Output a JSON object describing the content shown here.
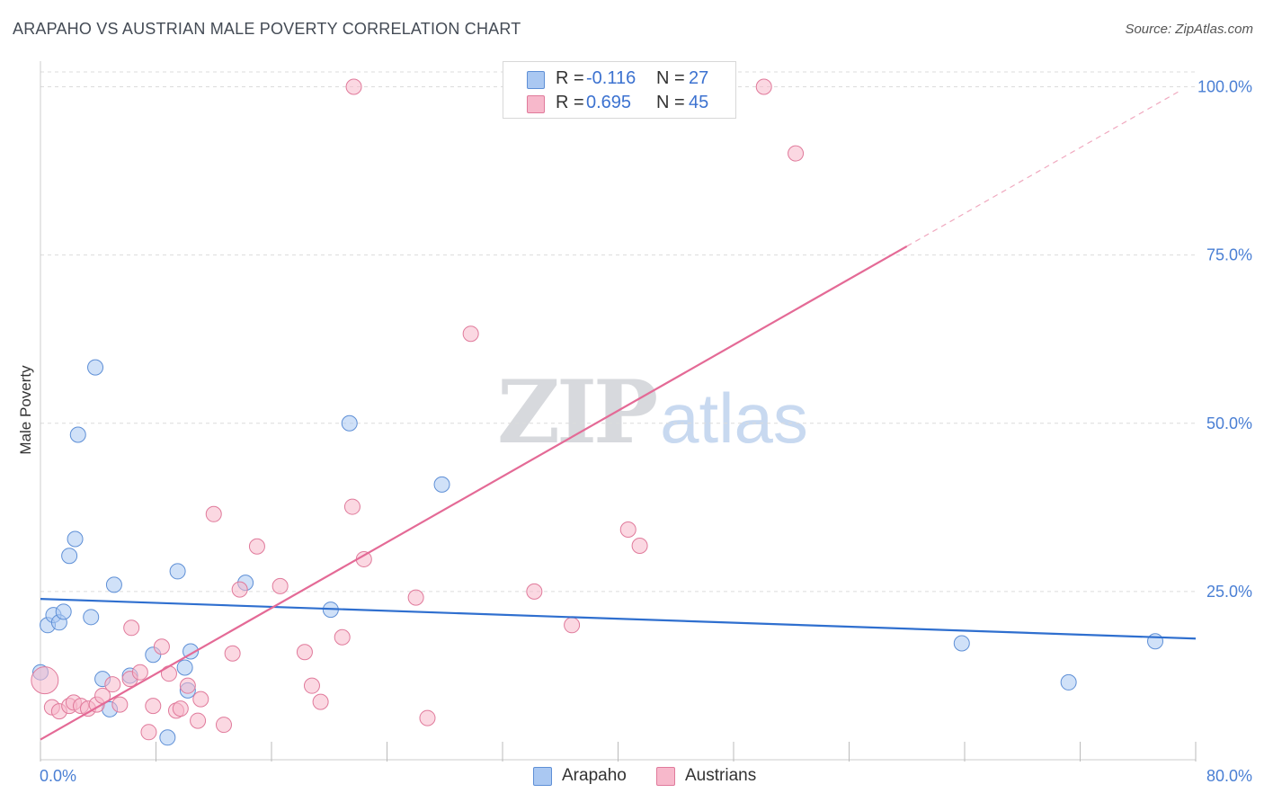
{
  "title": "ARAPAHO VS AUSTRIAN MALE POVERTY CORRELATION CHART",
  "source": "Source: ZipAtlas.com",
  "watermark": {
    "zip": "ZIP",
    "atlas": "atlas"
  },
  "legend": {
    "rows": [
      {
        "r_label": "R =",
        "r_value": "-0.116",
        "n_label": "N =",
        "n_value": "27",
        "color": "#aac8f2",
        "border": "#5e8fd6"
      },
      {
        "r_label": "R =",
        "r_value": "0.695",
        "n_label": "N =",
        "n_value": "45",
        "color": "#f7b8cb",
        "border": "#e07a9b"
      }
    ]
  },
  "bottom_legend": [
    {
      "label": "Arapaho",
      "color": "#aac8f2",
      "border": "#5e8fd6"
    },
    {
      "label": "Austrians",
      "color": "#f7b8cb",
      "border": "#e07a9b"
    }
  ],
  "chart_data": {
    "type": "scatter",
    "title": "ARAPAHO VS AUSTRIAN MALE POVERTY CORRELATION CHART",
    "xlabel": "",
    "ylabel": "Male Poverty",
    "xlim": [
      0,
      80
    ],
    "ylim": [
      0,
      102
    ],
    "x_tick_labels": [
      "0.0%",
      "80.0%"
    ],
    "y_ticks": [
      25,
      50,
      75,
      100
    ],
    "y_tick_labels": [
      "25.0%",
      "50.0%",
      "75.0%",
      "100.0%"
    ],
    "grid": true,
    "legend_position": "top-center",
    "series": [
      {
        "name": "Arapaho",
        "color": "#aac8f2",
        "stroke": "#5e8fd6",
        "line_color": "#2f6fcf",
        "points": [
          [
            0.0,
            13.0
          ],
          [
            0.5,
            20.0
          ],
          [
            0.9,
            21.5
          ],
          [
            1.3,
            20.4
          ],
          [
            1.6,
            22.0
          ],
          [
            2.0,
            30.3
          ],
          [
            2.4,
            32.8
          ],
          [
            2.6,
            48.3
          ],
          [
            3.5,
            21.2
          ],
          [
            3.8,
            58.3
          ],
          [
            4.3,
            12.0
          ],
          [
            4.8,
            7.5
          ],
          [
            5.1,
            26.0
          ],
          [
            6.2,
            12.5
          ],
          [
            7.8,
            15.6
          ],
          [
            8.8,
            3.3
          ],
          [
            9.5,
            28.0
          ],
          [
            10.0,
            13.7
          ],
          [
            10.2,
            10.3
          ],
          [
            10.4,
            16.1
          ],
          [
            14.2,
            26.3
          ],
          [
            20.1,
            22.3
          ],
          [
            21.4,
            50.0
          ],
          [
            27.8,
            40.9
          ],
          [
            63.8,
            17.3
          ],
          [
            71.2,
            11.5
          ],
          [
            77.2,
            17.6
          ]
        ],
        "trend": {
          "x": [
            0,
            80
          ],
          "y": [
            23.9,
            18.0
          ]
        }
      },
      {
        "name": "Austrians",
        "color": "#f7b8cb",
        "stroke": "#e07a9b",
        "line_color": "#e46a96",
        "points": [
          [
            0.3,
            11.8
          ],
          [
            0.8,
            7.8
          ],
          [
            1.3,
            7.2
          ],
          [
            2.0,
            8.0
          ],
          [
            2.3,
            8.5
          ],
          [
            2.8,
            8.0
          ],
          [
            3.3,
            7.6
          ],
          [
            3.9,
            8.2
          ],
          [
            4.3,
            9.5
          ],
          [
            5.0,
            11.2
          ],
          [
            5.5,
            8.2
          ],
          [
            6.2,
            12.0
          ],
          [
            6.3,
            19.6
          ],
          [
            6.9,
            13.0
          ],
          [
            7.5,
            4.1
          ],
          [
            7.8,
            8.0
          ],
          [
            8.4,
            16.8
          ],
          [
            8.9,
            12.8
          ],
          [
            9.4,
            7.3
          ],
          [
            9.7,
            7.6
          ],
          [
            10.2,
            11.0
          ],
          [
            10.9,
            5.8
          ],
          [
            11.1,
            9.0
          ],
          [
            12.0,
            36.5
          ],
          [
            12.7,
            5.2
          ],
          [
            13.3,
            15.8
          ],
          [
            13.8,
            25.3
          ],
          [
            15.0,
            31.7
          ],
          [
            16.6,
            25.8
          ],
          [
            18.3,
            16.0
          ],
          [
            18.8,
            11.0
          ],
          [
            19.4,
            8.6
          ],
          [
            21.6,
            37.6
          ],
          [
            21.7,
            100.0
          ],
          [
            22.4,
            29.8
          ],
          [
            26.0,
            24.1
          ],
          [
            26.8,
            6.2
          ],
          [
            29.8,
            63.3
          ],
          [
            34.2,
            25.0
          ],
          [
            36.8,
            20.0
          ],
          [
            40.7,
            34.2
          ],
          [
            41.5,
            31.8
          ],
          [
            50.1,
            100.0
          ],
          [
            52.3,
            90.1
          ],
          [
            20.9,
            18.2
          ]
        ],
        "trend": {
          "x": [
            0,
            60
          ],
          "y": [
            3.0,
            76.3
          ]
        },
        "trend_dashed_extension": {
          "x": [
            60,
            79
          ],
          "y": [
            76.3,
            99.5
          ]
        }
      }
    ]
  }
}
